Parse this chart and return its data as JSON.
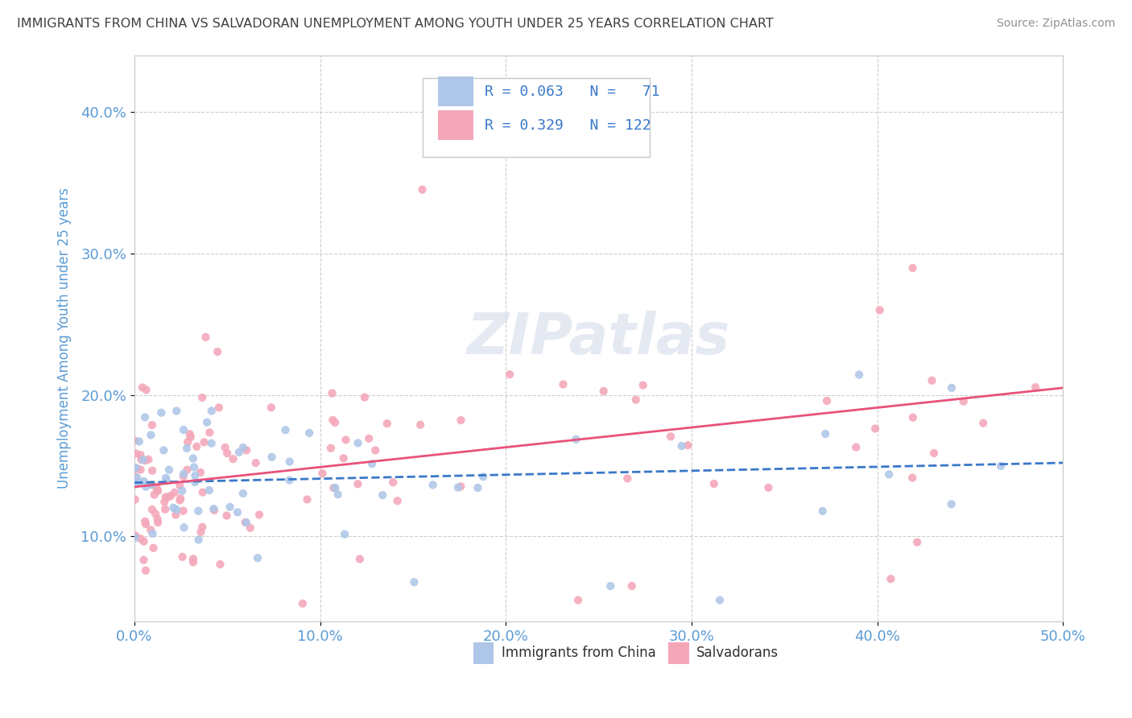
{
  "title": "IMMIGRANTS FROM CHINA VS SALVADORAN UNEMPLOYMENT AMONG YOUTH UNDER 25 YEARS CORRELATION CHART",
  "source": "Source: ZipAtlas.com",
  "ylabel": "Unemployment Among Youth under 25 years",
  "xlim": [
    0.0,
    0.5
  ],
  "ylim": [
    0.04,
    0.44
  ],
  "xticks": [
    0.0,
    0.1,
    0.2,
    0.3,
    0.4,
    0.5
  ],
  "yticks": [
    0.1,
    0.2,
    0.3,
    0.4
  ],
  "blue_R": 0.063,
  "blue_N": 71,
  "pink_R": 0.329,
  "pink_N": 122,
  "blue_color": "#aec6e8",
  "pink_color": "#f4a7b9",
  "blue_line_color": "#3a78c9",
  "pink_line_color": "#e8527a",
  "title_color": "#404040",
  "source_color": "#909090",
  "axis_label_color": "#5b9bd5",
  "legend_text_color": "#303030",
  "R_N_color": "#3a78c9",
  "watermark": "ZIPatlas",
  "background_color": "#ffffff",
  "grid_color": "#c8c8c8",
  "blue_trend_x0": 0.0,
  "blue_trend_x1": 0.5,
  "blue_trend_y0": 0.138,
  "blue_trend_y1": 0.152,
  "pink_trend_x0": 0.0,
  "pink_trend_x1": 0.5,
  "pink_trend_y0": 0.135,
  "pink_trend_y1": 0.205
}
